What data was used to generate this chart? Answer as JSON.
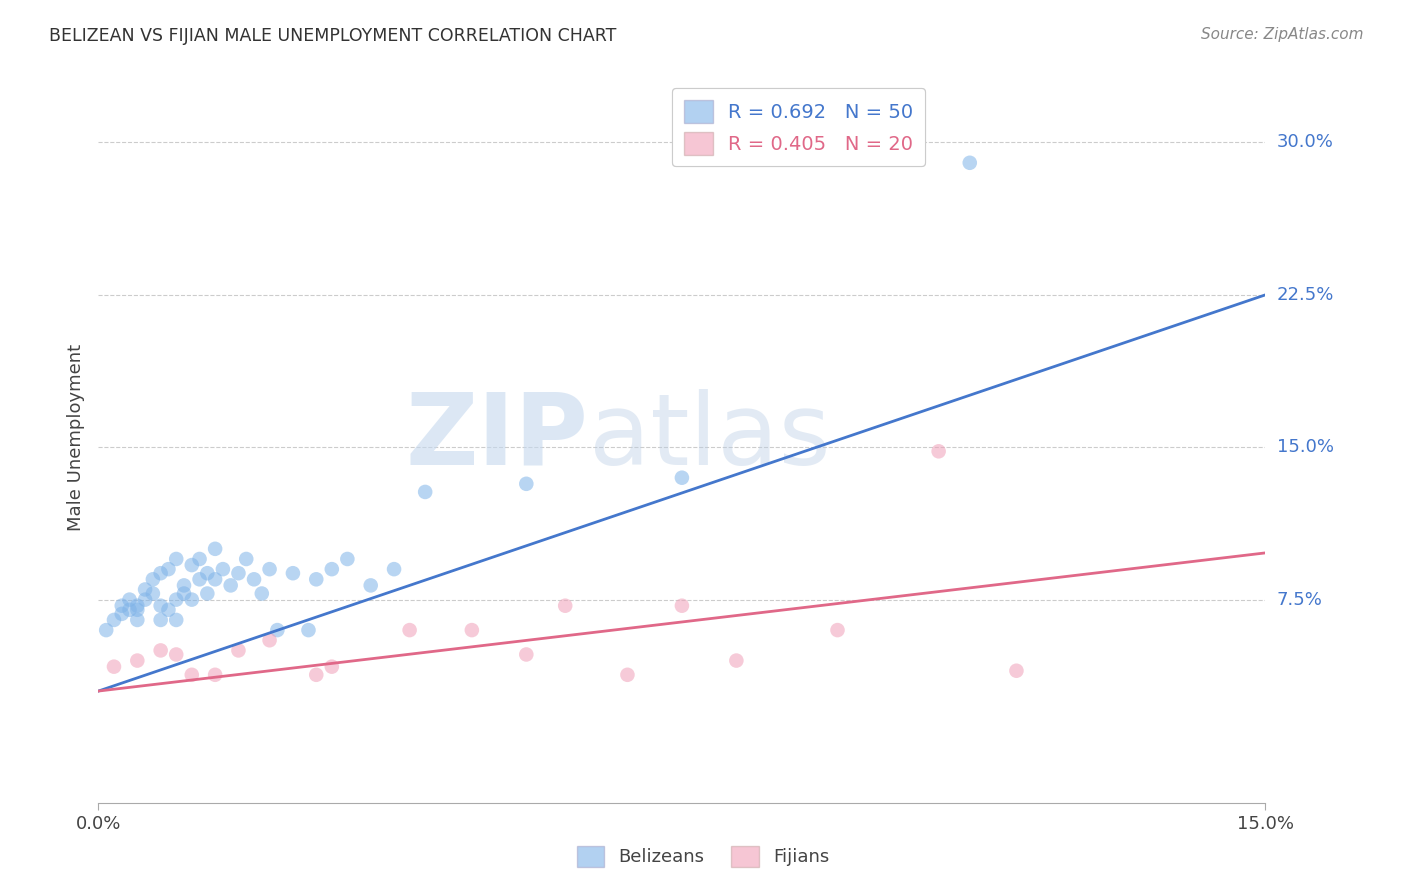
{
  "title": "BELIZEAN VS FIJIAN MALE UNEMPLOYMENT CORRELATION CHART",
  "source": "Source: ZipAtlas.com",
  "ylabel": "Male Unemployment",
  "xlim": [
    0.0,
    0.15
  ],
  "ylim": [
    -0.025,
    0.335
  ],
  "ytick_labels": [
    "7.5%",
    "15.0%",
    "22.5%",
    "30.0%"
  ],
  "ytick_values": [
    0.075,
    0.15,
    0.225,
    0.3
  ],
  "xtick_labels": [
    "0.0%",
    "15.0%"
  ],
  "xtick_values": [
    0.0,
    0.15
  ],
  "legend_label1": "R = 0.692   N = 50",
  "legend_label2": "R = 0.405   N = 20",
  "legend_bottom_label1": "Belizeans",
  "legend_bottom_label2": "Fijians",
  "blue_color": "#7fb3e8",
  "pink_color": "#f0a0b8",
  "blue_line_color": "#4477cc",
  "pink_line_color": "#e06888",
  "watermark_zip": "ZIP",
  "watermark_atlas": "atlas",
  "blue_scatter_x": [
    0.001,
    0.002,
    0.003,
    0.003,
    0.004,
    0.004,
    0.005,
    0.005,
    0.005,
    0.006,
    0.006,
    0.007,
    0.007,
    0.008,
    0.008,
    0.008,
    0.009,
    0.009,
    0.01,
    0.01,
    0.01,
    0.011,
    0.011,
    0.012,
    0.012,
    0.013,
    0.013,
    0.014,
    0.014,
    0.015,
    0.015,
    0.016,
    0.017,
    0.018,
    0.019,
    0.02,
    0.021,
    0.022,
    0.023,
    0.025,
    0.027,
    0.028,
    0.03,
    0.032,
    0.035,
    0.038,
    0.042,
    0.055,
    0.075,
    0.112
  ],
  "blue_scatter_y": [
    0.06,
    0.065,
    0.068,
    0.072,
    0.07,
    0.075,
    0.065,
    0.07,
    0.072,
    0.075,
    0.08,
    0.078,
    0.085,
    0.065,
    0.072,
    0.088,
    0.07,
    0.09,
    0.065,
    0.075,
    0.095,
    0.078,
    0.082,
    0.075,
    0.092,
    0.085,
    0.095,
    0.088,
    0.078,
    0.085,
    0.1,
    0.09,
    0.082,
    0.088,
    0.095,
    0.085,
    0.078,
    0.09,
    0.06,
    0.088,
    0.06,
    0.085,
    0.09,
    0.095,
    0.082,
    0.09,
    0.128,
    0.132,
    0.135,
    0.29
  ],
  "pink_scatter_x": [
    0.002,
    0.005,
    0.008,
    0.01,
    0.012,
    0.015,
    0.018,
    0.022,
    0.028,
    0.03,
    0.04,
    0.048,
    0.055,
    0.06,
    0.068,
    0.075,
    0.082,
    0.095,
    0.108,
    0.118
  ],
  "pink_scatter_y": [
    0.042,
    0.045,
    0.05,
    0.048,
    0.038,
    0.038,
    0.05,
    0.055,
    0.038,
    0.042,
    0.06,
    0.06,
    0.048,
    0.072,
    0.038,
    0.072,
    0.045,
    0.06,
    0.148,
    0.04
  ],
  "blue_line_x0": 0.0,
  "blue_line_y0": 0.03,
  "blue_line_x1": 0.15,
  "blue_line_y1": 0.225,
  "pink_line_x0": 0.0,
  "pink_line_y0": 0.03,
  "pink_line_x1": 0.15,
  "pink_line_y1": 0.098
}
